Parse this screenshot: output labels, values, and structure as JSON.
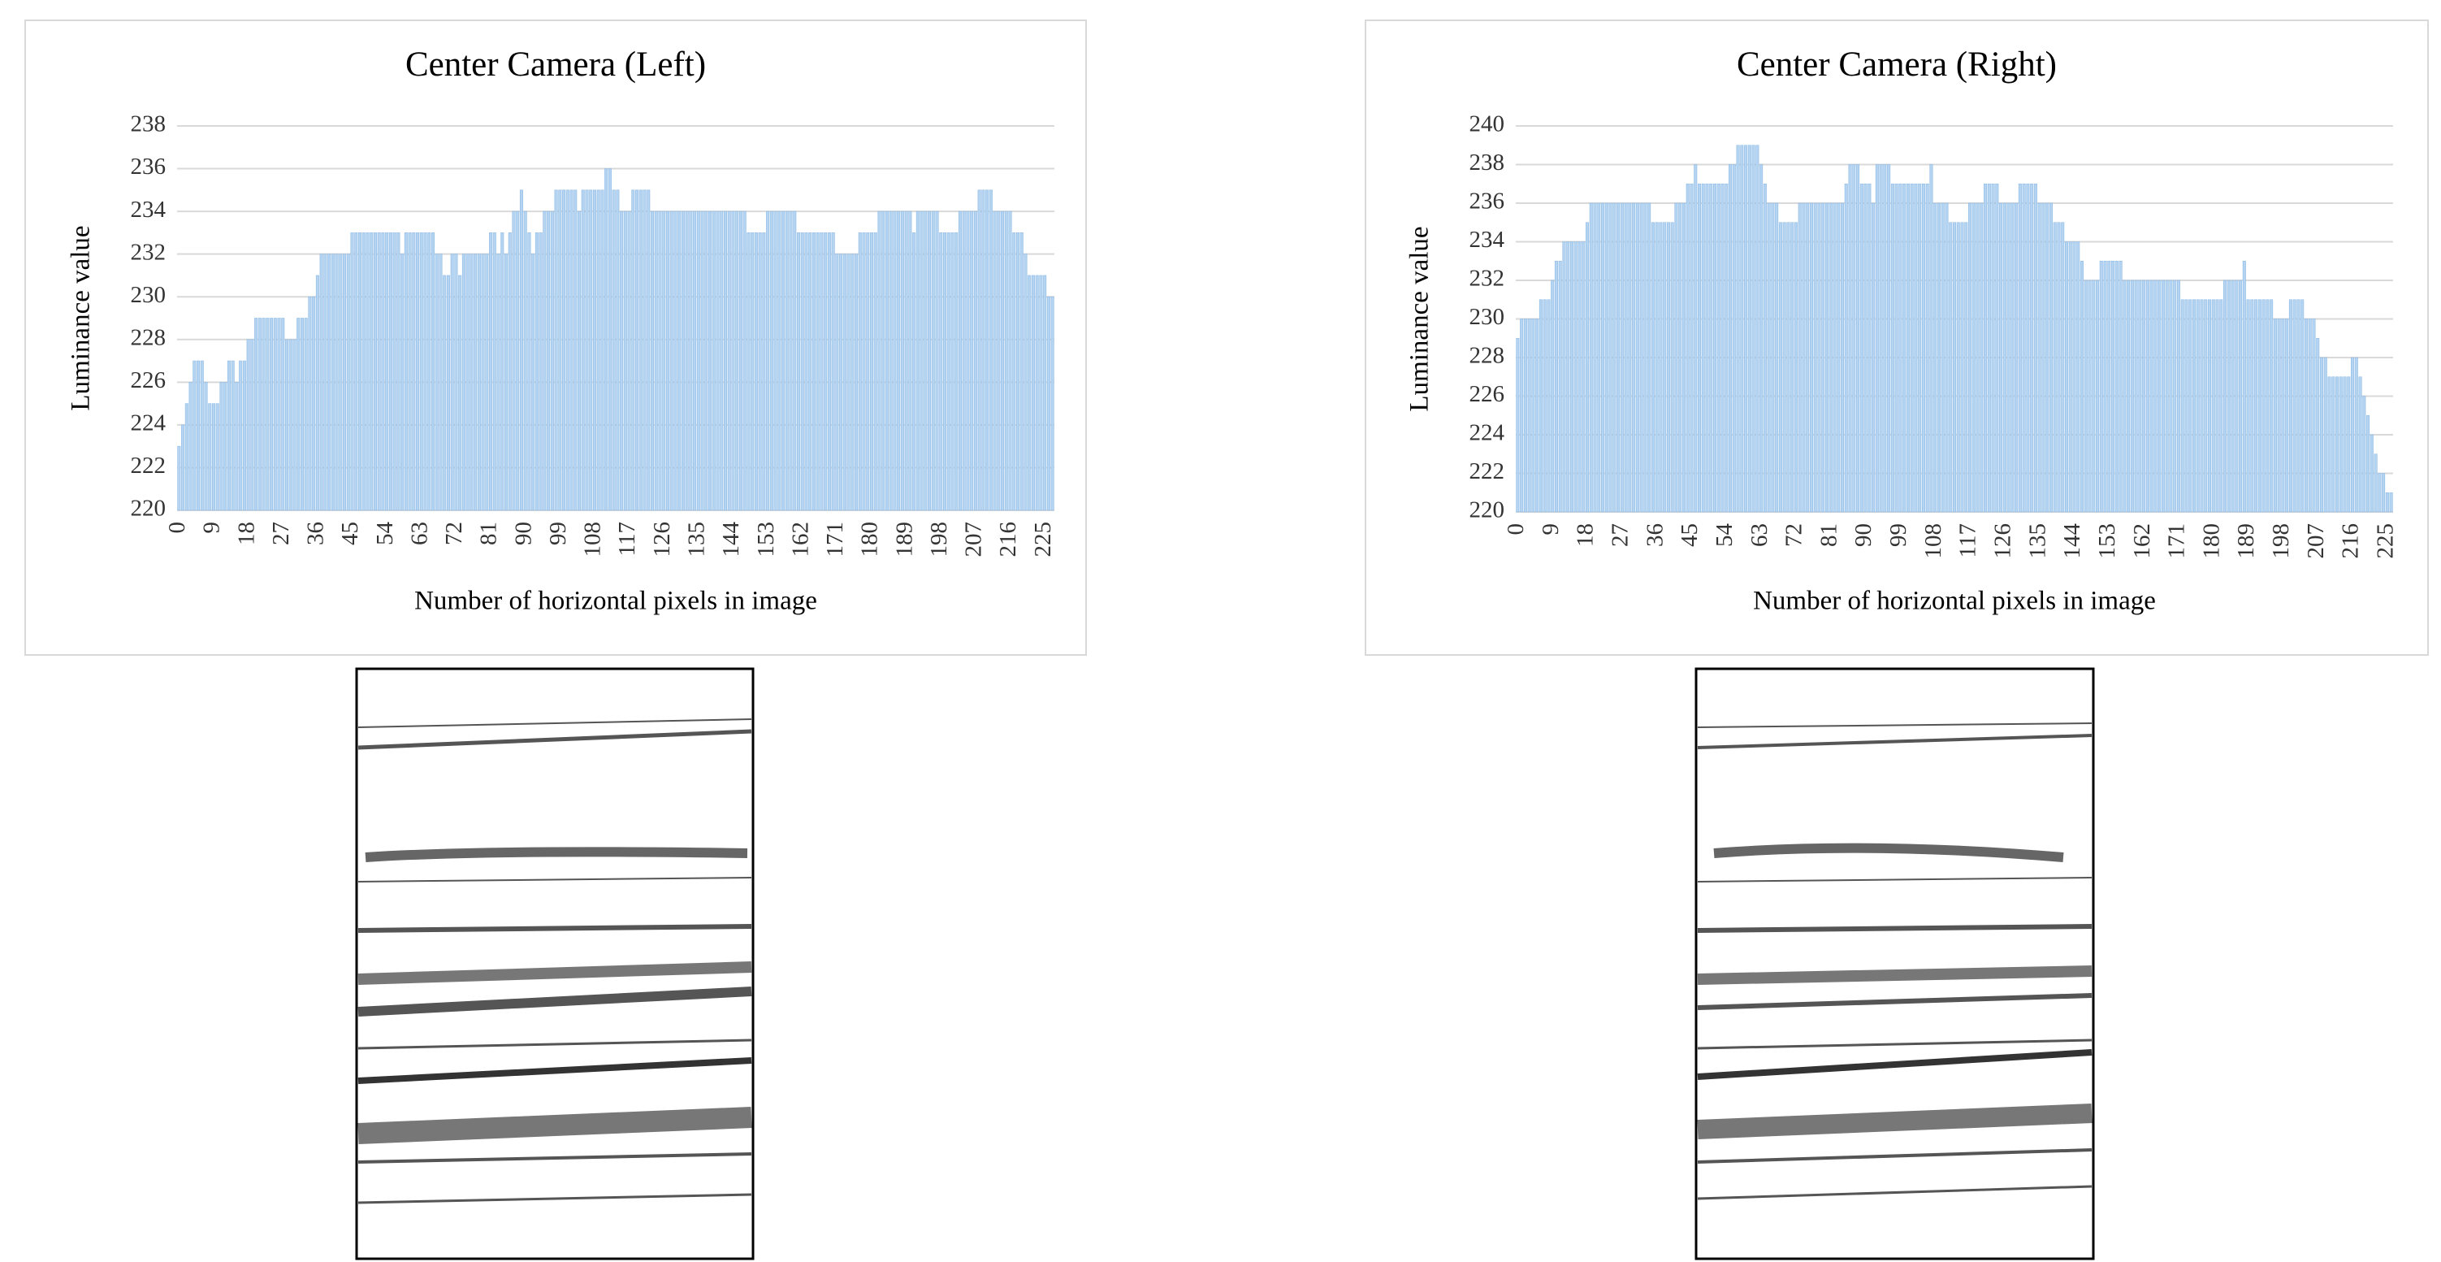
{
  "chart_data": [
    {
      "type": "bar",
      "title": "Center Camera (Left)",
      "x_label": "Number of horizontal pixels in image",
      "y_label": "Luminance value",
      "x": [
        0,
        1,
        2,
        3,
        4,
        5,
        6,
        7,
        8,
        9,
        10,
        11,
        12,
        13,
        14,
        15,
        16,
        17,
        18,
        19,
        20,
        21,
        22,
        23,
        24,
        25,
        26,
        27,
        28,
        29,
        30,
        31,
        32,
        33,
        34,
        35,
        36,
        37,
        38,
        39,
        40,
        41,
        42,
        43,
        44,
        45,
        46,
        47,
        48,
        49,
        50,
        51,
        52,
        53,
        54,
        55,
        56,
        57,
        58,
        59,
        60,
        61,
        62,
        63,
        64,
        65,
        66,
        67,
        68,
        69,
        70,
        71,
        72,
        73,
        74,
        75,
        76,
        77,
        78,
        79,
        80,
        81,
        82,
        83,
        84,
        85,
        86,
        87,
        88,
        89,
        90,
        91,
        92,
        93,
        94,
        95,
        96,
        97,
        98,
        99,
        100,
        101,
        102,
        103,
        104,
        105,
        106,
        107,
        108,
        109,
        110,
        111,
        112,
        113,
        114,
        115,
        116,
        117,
        118,
        119,
        120,
        121,
        122,
        123,
        124,
        125,
        126,
        127,
        128,
        129,
        130,
        131,
        132,
        133,
        134,
        135,
        136,
        137,
        138,
        139,
        140,
        141,
        142,
        143,
        144,
        145,
        146,
        147,
        148,
        149,
        150,
        151,
        152,
        153,
        154,
        155,
        156,
        157,
        158,
        159,
        160,
        161,
        162,
        163,
        164,
        165,
        166,
        167,
        168,
        169,
        170,
        171,
        172,
        173,
        174,
        175,
        176,
        177,
        178,
        179,
        180,
        181,
        182,
        183,
        184,
        185,
        186,
        187,
        188,
        189,
        190,
        191,
        192,
        193,
        194,
        195,
        196,
        197,
        198,
        199,
        200,
        201,
        202,
        203,
        204,
        205,
        206,
        207,
        208,
        209,
        210,
        211,
        212,
        213,
        214,
        215,
        216,
        217,
        218,
        219,
        220,
        221,
        222,
        223,
        224,
        225,
        226,
        227
      ],
      "values": [
        223,
        224,
        225,
        226,
        227,
        227,
        227,
        226,
        225,
        225,
        225,
        226,
        226,
        227,
        227,
        226,
        227,
        227,
        228,
        228,
        229,
        229,
        229,
        229,
        229,
        229,
        229,
        229,
        228,
        228,
        228,
        229,
        229,
        229,
        230,
        230,
        231,
        232,
        232,
        232,
        232,
        232,
        232,
        232,
        232,
        233,
        233,
        233,
        233,
        233,
        233,
        233,
        233,
        233,
        233,
        233,
        233,
        233,
        232,
        233,
        233,
        233,
        233,
        233,
        233,
        233,
        233,
        232,
        232,
        231,
        231,
        232,
        232,
        231,
        232,
        232,
        232,
        232,
        232,
        232,
        232,
        233,
        233,
        232,
        233,
        232,
        233,
        234,
        234,
        235,
        234,
        233,
        232,
        233,
        233,
        234,
        234,
        234,
        235,
        235,
        235,
        235,
        235,
        235,
        234,
        235,
        235,
        235,
        235,
        235,
        235,
        236,
        236,
        235,
        235,
        234,
        234,
        234,
        235,
        235,
        235,
        235,
        235,
        234,
        234,
        234,
        234,
        234,
        234,
        234,
        234,
        234,
        234,
        234,
        234,
        234,
        234,
        234,
        234,
        234,
        234,
        234,
        234,
        234,
        234,
        234,
        234,
        234,
        233,
        233,
        233,
        233,
        233,
        234,
        234,
        234,
        234,
        234,
        234,
        234,
        234,
        233,
        233,
        233,
        233,
        233,
        233,
        233,
        233,
        233,
        233,
        232,
        232,
        232,
        232,
        232,
        232,
        233,
        233,
        233,
        233,
        233,
        234,
        234,
        234,
        234,
        234,
        234,
        234,
        234,
        234,
        233,
        234,
        234,
        234,
        234,
        234,
        234,
        233,
        233,
        233,
        233,
        233,
        234,
        234,
        234,
        234,
        234,
        235,
        235,
        235,
        235,
        234,
        234,
        234,
        234,
        234,
        233,
        233,
        233,
        232,
        231,
        231,
        231,
        231,
        231,
        230,
        230
      ],
      "xlim": [
        -0.5,
        227.5
      ],
      "xticks": [
        0,
        9,
        18,
        27,
        36,
        45,
        54,
        63,
        72,
        81,
        90,
        99,
        108,
        117,
        126,
        135,
        144,
        153,
        162,
        171,
        180,
        189,
        198,
        207,
        216,
        225
      ],
      "ylim": [
        220,
        238
      ],
      "yticks": [
        220,
        222,
        224,
        226,
        228,
        230,
        232,
        234,
        236,
        238
      ],
      "color": "#b4d4f1",
      "grid": true
    },
    {
      "type": "bar",
      "title": "Center Camera (Right)",
      "x_label": "Number of horizontal pixels in image",
      "y_label": "Luminance value",
      "x": [
        0,
        1,
        2,
        3,
        4,
        5,
        6,
        7,
        8,
        9,
        10,
        11,
        12,
        13,
        14,
        15,
        16,
        17,
        18,
        19,
        20,
        21,
        22,
        23,
        24,
        25,
        26,
        27,
        28,
        29,
        30,
        31,
        32,
        33,
        34,
        35,
        36,
        37,
        38,
        39,
        40,
        41,
        42,
        43,
        44,
        45,
        46,
        47,
        48,
        49,
        50,
        51,
        52,
        53,
        54,
        55,
        56,
        57,
        58,
        59,
        60,
        61,
        62,
        63,
        64,
        65,
        66,
        67,
        68,
        69,
        70,
        71,
        72,
        73,
        74,
        75,
        76,
        77,
        78,
        79,
        80,
        81,
        82,
        83,
        84,
        85,
        86,
        87,
        88,
        89,
        90,
        91,
        92,
        93,
        94,
        95,
        96,
        97,
        98,
        99,
        100,
        101,
        102,
        103,
        104,
        105,
        106,
        107,
        108,
        109,
        110,
        111,
        112,
        113,
        114,
        115,
        116,
        117,
        118,
        119,
        120,
        121,
        122,
        123,
        124,
        125,
        126,
        127,
        128,
        129,
        130,
        131,
        132,
        133,
        134,
        135,
        136,
        137,
        138,
        139,
        140,
        141,
        142,
        143,
        144,
        145,
        146,
        147,
        148,
        149,
        150,
        151,
        152,
        153,
        154,
        155,
        156,
        157,
        158,
        159,
        160,
        161,
        162,
        163,
        164,
        165,
        166,
        167,
        168,
        169,
        170,
        171,
        172,
        173,
        174,
        175,
        176,
        177,
        178,
        179,
        180,
        181,
        182,
        183,
        184,
        185,
        186,
        187,
        188,
        189,
        190,
        191,
        192,
        193,
        194,
        195,
        196,
        197,
        198,
        199,
        200,
        201,
        202,
        203,
        204,
        205,
        206,
        207,
        208,
        209,
        210,
        211,
        212,
        213,
        214,
        215,
        216,
        217,
        218,
        219,
        220,
        221,
        222,
        223,
        224,
        225,
        226
      ],
      "values": [
        229,
        230,
        230,
        230,
        230,
        230,
        231,
        231,
        231,
        232,
        233,
        233,
        234,
        234,
        234,
        234,
        234,
        234,
        235,
        236,
        236,
        236,
        236,
        236,
        236,
        236,
        236,
        236,
        236,
        236,
        236,
        236,
        236,
        236,
        236,
        235,
        235,
        235,
        235,
        235,
        235,
        236,
        236,
        236,
        237,
        237,
        238,
        237,
        237,
        237,
        237,
        237,
        237,
        237,
        237,
        238,
        238,
        239,
        239,
        239,
        239,
        239,
        239,
        238,
        237,
        236,
        236,
        236,
        235,
        235,
        235,
        235,
        235,
        236,
        236,
        236,
        236,
        236,
        236,
        236,
        236,
        236,
        236,
        236,
        236,
        237,
        238,
        238,
        238,
        237,
        237,
        237,
        236,
        238,
        238,
        238,
        238,
        237,
        237,
        237,
        237,
        237,
        237,
        237,
        237,
        237,
        237,
        238,
        236,
        236,
        236,
        236,
        235,
        235,
        235,
        235,
        235,
        236,
        236,
        236,
        236,
        237,
        237,
        237,
        237,
        236,
        236,
        236,
        236,
        236,
        237,
        237,
        237,
        237,
        237,
        236,
        236,
        236,
        236,
        235,
        235,
        235,
        234,
        234,
        234,
        234,
        233,
        232,
        232,
        232,
        232,
        233,
        233,
        233,
        233,
        233,
        233,
        232,
        232,
        232,
        232,
        232,
        232,
        232,
        232,
        232,
        232,
        232,
        232,
        232,
        232,
        232,
        231,
        231,
        231,
        231,
        231,
        231,
        231,
        231,
        231,
        231,
        231,
        232,
        232,
        232,
        232,
        232,
        233,
        231,
        231,
        231,
        231,
        231,
        231,
        231,
        230,
        230,
        230,
        230,
        231,
        231,
        231,
        231,
        230,
        230,
        230,
        229,
        228,
        228,
        227,
        227,
        227,
        227,
        227,
        227,
        228,
        228,
        227,
        226,
        225,
        224,
        223,
        222,
        222,
        221,
        221
      ],
      "xlim": [
        -0.5,
        226.5
      ],
      "xticks": [
        0,
        9,
        18,
        27,
        36,
        45,
        54,
        63,
        72,
        81,
        90,
        99,
        108,
        117,
        126,
        135,
        144,
        153,
        162,
        171,
        180,
        189,
        198,
        207,
        216,
        225
      ],
      "ylim": [
        220,
        240
      ],
      "yticks": [
        220,
        222,
        224,
        226,
        228,
        230,
        232,
        234,
        236,
        238,
        240
      ],
      "color": "#b4d4f1",
      "grid": true
    }
  ]
}
